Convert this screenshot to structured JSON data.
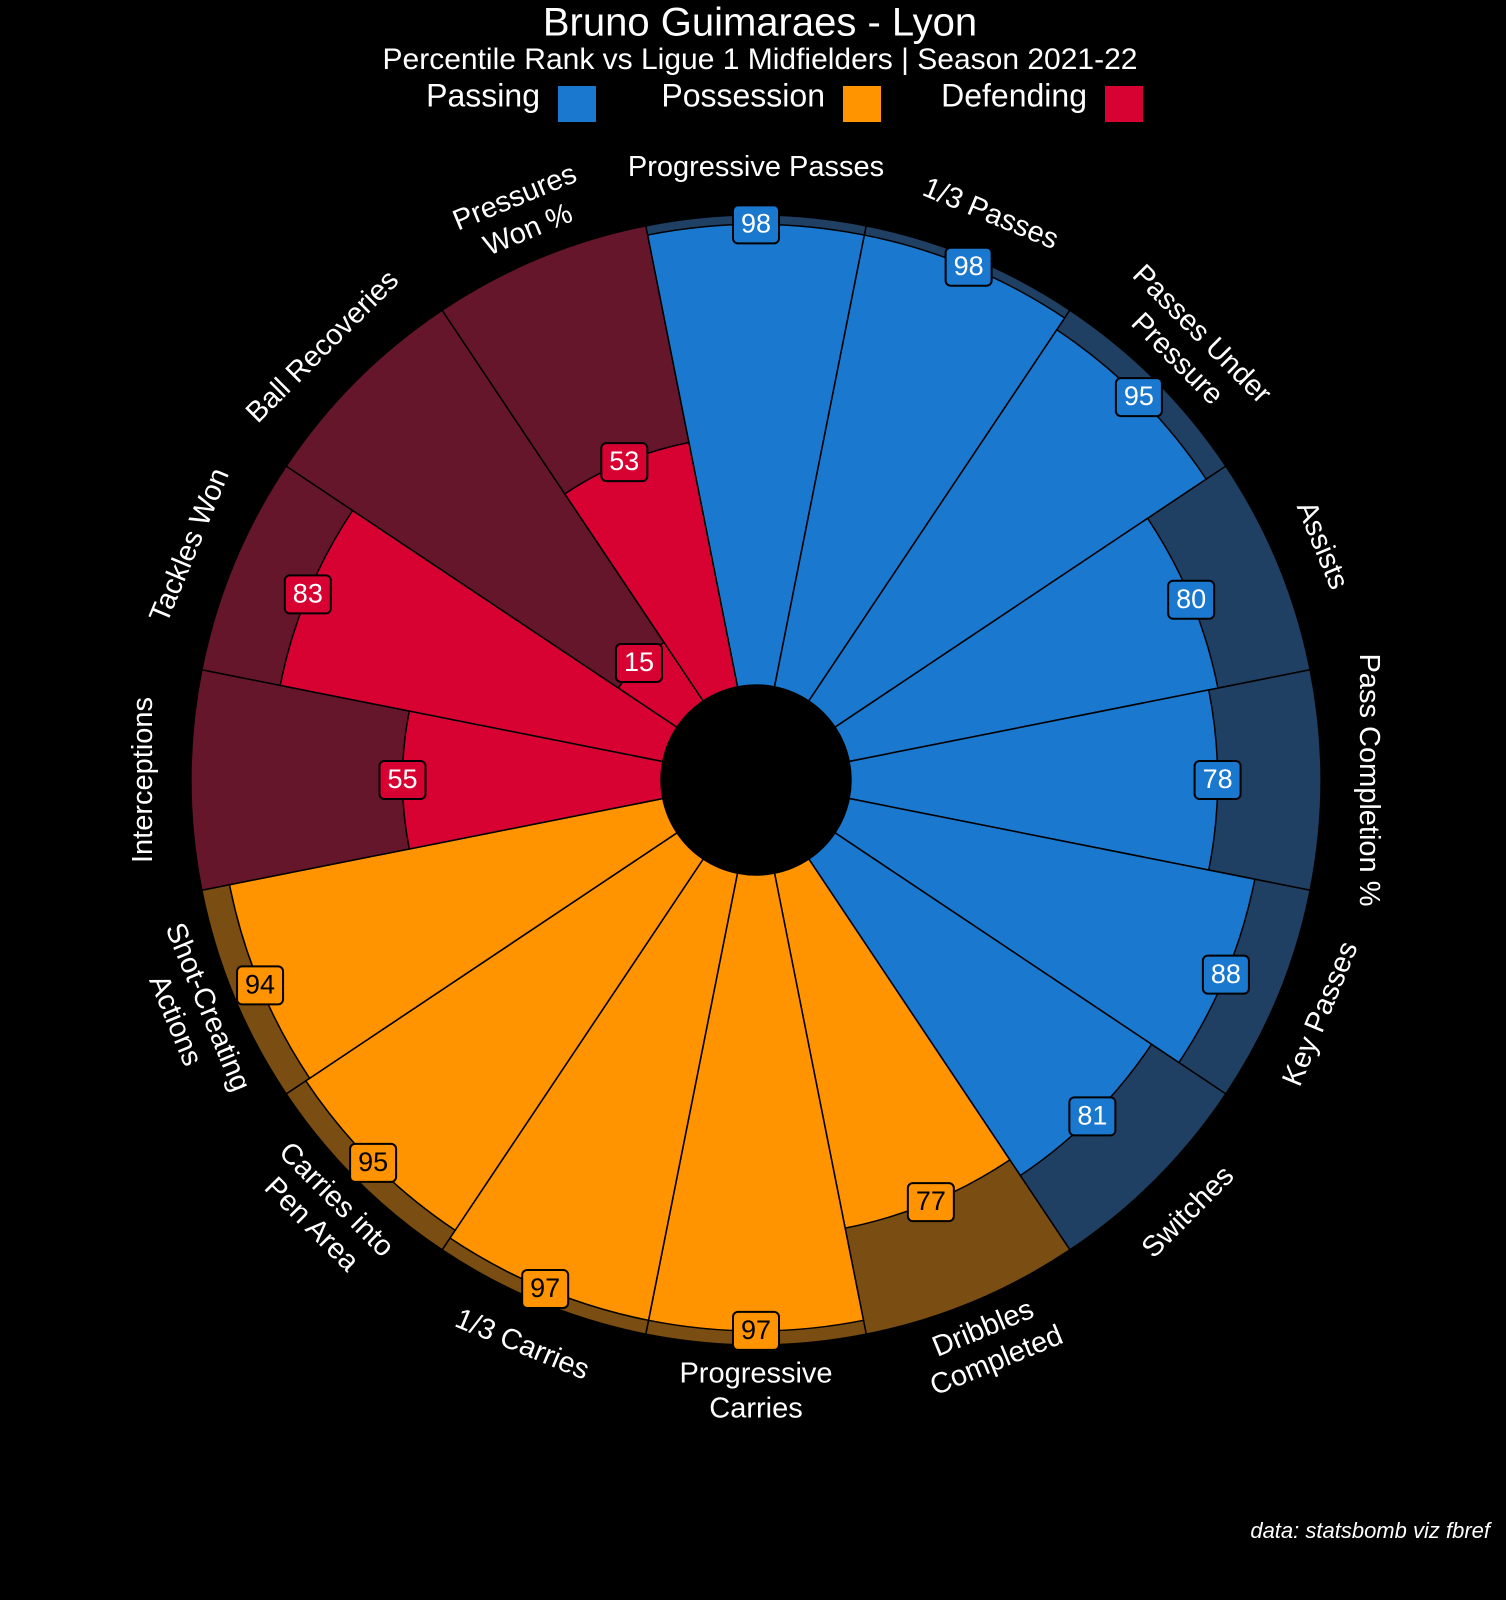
{
  "chart_data": {
    "type": "pizza",
    "title": "Bruno Guimaraes - Lyon",
    "subtitle": "Percentile Rank vs Ligue 1 Midfielders | Season 2021-22",
    "credit": "data: statsbomb viz fbref",
    "series": [
      {
        "name": "Passing",
        "color": "#1a78cf",
        "background_color": "#1f3f63",
        "label_text_color": "#ffffff",
        "categories": [
          "Progressive Passes",
          "1/3 Passes",
          "Passes Under\nPressure",
          "Assists",
          "Pass Completion %",
          "Key Passes",
          "Switches"
        ],
        "values": [
          98,
          98,
          95,
          80,
          78,
          88,
          81
        ]
      },
      {
        "name": "Possession",
        "color": "#ff9300",
        "background_color": "#7a4e12",
        "label_text_color": "#000000",
        "categories": [
          "Dribbles\nCompleted",
          "Progressive\nCarries",
          "1/3 Carries",
          "Carries into\nPen Area",
          "Shot-Creating\nActions"
        ],
        "values": [
          77,
          97,
          97,
          95,
          94
        ]
      },
      {
        "name": "Defending",
        "color": "#d70232",
        "background_color": "#65162a",
        "label_text_color": "#ffffff",
        "categories": [
          "Interceptions",
          "Tackles Won",
          "Ball Recoveries",
          "Pressures\nWon %"
        ],
        "values": [
          55,
          83,
          15,
          53
        ]
      }
    ],
    "rlim": [
      0,
      100
    ]
  }
}
